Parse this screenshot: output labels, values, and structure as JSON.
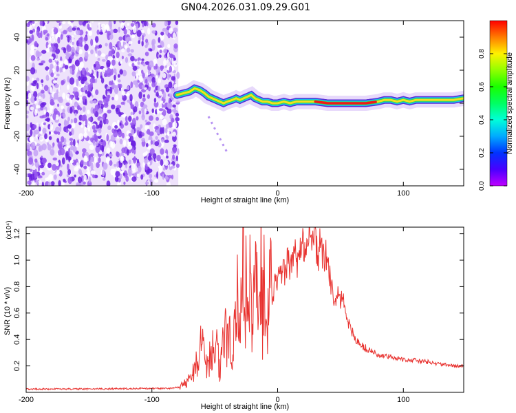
{
  "title": "GN04.2026.031.09.29.G01",
  "chart_data": [
    {
      "type": "heatmap",
      "title": "GN04.2026.031.09.29.G01",
      "xlabel": "Height of straight line (km)",
      "ylabel": "Frequency (Hz)",
      "xlim": [
        -200,
        148
      ],
      "ylim": [
        -50,
        50
      ],
      "xticks": [
        -200,
        -100,
        0,
        100
      ],
      "yticks": [
        -40,
        -20,
        0,
        20,
        40
      ],
      "noise_region_x": [
        -200,
        -79
      ],
      "ridge": {
        "x": [
          -80,
          -75,
          -70,
          -66,
          -62,
          -58,
          -55,
          -52,
          -49,
          -46,
          -43,
          -40,
          -36,
          -33,
          -30,
          -27,
          -24,
          -21,
          -18,
          -15,
          -12,
          -8,
          -4,
          0,
          5,
          10,
          15,
          20,
          30,
          40,
          50,
          60,
          70,
          80,
          85,
          90,
          95,
          100,
          105,
          110,
          120,
          130,
          140,
          148
        ],
        "y": [
          5,
          6,
          7,
          9,
          8,
          6,
          4,
          3,
          2,
          1,
          0,
          1,
          2,
          3,
          2,
          3,
          4,
          5,
          3,
          2,
          1,
          1,
          0,
          0,
          1,
          0,
          1,
          1,
          1,
          0,
          0,
          0,
          0,
          1,
          2,
          2,
          1,
          2,
          1,
          2,
          2,
          2,
          2,
          3
        ]
      },
      "ridge_peak_x": [
        30,
        78
      ],
      "colorbar": {
        "label": "Normalized spectral amplitude",
        "range": [
          0,
          1
        ],
        "ticks": [
          "0.0",
          "0.2",
          "0.4",
          "0.6",
          "0.8"
        ],
        "tick_values": [
          0,
          0.2,
          0.4,
          0.6,
          0.8
        ]
      }
    },
    {
      "type": "line",
      "xlabel": "Height of straight line (km)",
      "ylabel": "SNR (10 * v/v)",
      "multiplier_label": "(x10⁴)",
      "xlim": [
        -200,
        148
      ],
      "ylim": [
        0,
        1.25
      ],
      "xticks": [
        -200,
        -100,
        0,
        100
      ],
      "yticks": [
        0.2,
        0.4,
        0.6,
        0.8,
        1.0,
        1.2
      ],
      "ytick_labels": [
        "0.2",
        "0.4",
        "0.6",
        "0.8",
        "1.0",
        "1.2"
      ],
      "series": [
        {
          "color": "#e8312e",
          "x": [
            -200,
            -150,
            -100,
            -85,
            -78,
            -74,
            -70,
            -66,
            -62,
            -60,
            -58,
            -55,
            -52,
            -50,
            -48,
            -46,
            -44,
            -42,
            -40,
            -38,
            -36,
            -34,
            -32,
            -30,
            -28,
            -27,
            -26,
            -25,
            -24,
            -22,
            -20,
            -18,
            -16,
            -14,
            -13,
            -12,
            -11,
            -10,
            -8,
            -6,
            -4,
            -2,
            0,
            2,
            4,
            6,
            8,
            10,
            12,
            14,
            16,
            18,
            20,
            22,
            24,
            26,
            28,
            30,
            32,
            34,
            36,
            38,
            40,
            42,
            44,
            45,
            46,
            48,
            50,
            52,
            54,
            56,
            60,
            65,
            70,
            75,
            80,
            85,
            90,
            95,
            100,
            110,
            120,
            130,
            140,
            148
          ],
          "y": [
            0.025,
            0.025,
            0.03,
            0.03,
            0.04,
            0.07,
            0.1,
            0.17,
            0.3,
            0.4,
            0.27,
            0.2,
            0.39,
            0.17,
            0.36,
            0.12,
            0.3,
            0.42,
            0.4,
            0.5,
            0.25,
            0.52,
            0.7,
            0.45,
            0.9,
            1.2,
            0.5,
            0.85,
            0.6,
            0.82,
            0.42,
            1.13,
            0.7,
            0.5,
            1.17,
            0.37,
            1.1,
            0.55,
            0.6,
            0.85,
            0.7,
            0.82,
            0.85,
            0.9,
            0.95,
            0.87,
            1.0,
            0.95,
            1.02,
            1.12,
            0.95,
            1.05,
            1.18,
            1.05,
            1.25,
            1.15,
            1.2,
            1.17,
            1.0,
            1.15,
            1.0,
            1.05,
            0.95,
            0.85,
            0.73,
            0.7,
            0.72,
            0.73,
            0.67,
            0.77,
            0.62,
            0.52,
            0.44,
            0.37,
            0.33,
            0.31,
            0.28,
            0.27,
            0.27,
            0.26,
            0.25,
            0.24,
            0.23,
            0.21,
            0.2,
            0.2
          ]
        }
      ]
    }
  ]
}
